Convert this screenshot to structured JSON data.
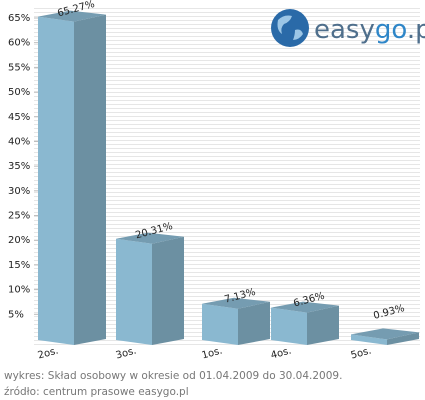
{
  "chart_data": {
    "type": "bar3d",
    "brand": [
      "easy",
      "go",
      ".pl"
    ],
    "categories": [
      "2os.",
      "3os.",
      "1os.",
      "4os.",
      "5os."
    ],
    "values": [
      65.27,
      20.31,
      7.13,
      6.36,
      0.93
    ],
    "value_labels": [
      "65.27%",
      "20.31%",
      "7.13%",
      "6.36%",
      "0.93%"
    ],
    "color": "#8ab8d0",
    "ylim": [
      0,
      65
    ],
    "yticks": [
      {
        "value": 5,
        "label": "5%"
      },
      {
        "value": 10,
        "label": "10%"
      },
      {
        "value": 15,
        "label": "15%"
      },
      {
        "value": 20,
        "label": "20%"
      },
      {
        "value": 25,
        "label": "25%"
      },
      {
        "value": 30,
        "label": "30%"
      },
      {
        "value": 35,
        "label": "35%"
      },
      {
        "value": 40,
        "label": "40%"
      },
      {
        "value": 45,
        "label": "45%"
      },
      {
        "value": 50,
        "label": "50%"
      },
      {
        "value": 55,
        "label": "55%"
      },
      {
        "value": 60,
        "label": "60%"
      },
      {
        "value": 65,
        "label": "65%"
      }
    ],
    "caption": "wykres: Skład osobowy w okresie od 01.04.2009 do 30.04.2009.",
    "source": "źródło: centrum prasowe easygo.pl"
  }
}
